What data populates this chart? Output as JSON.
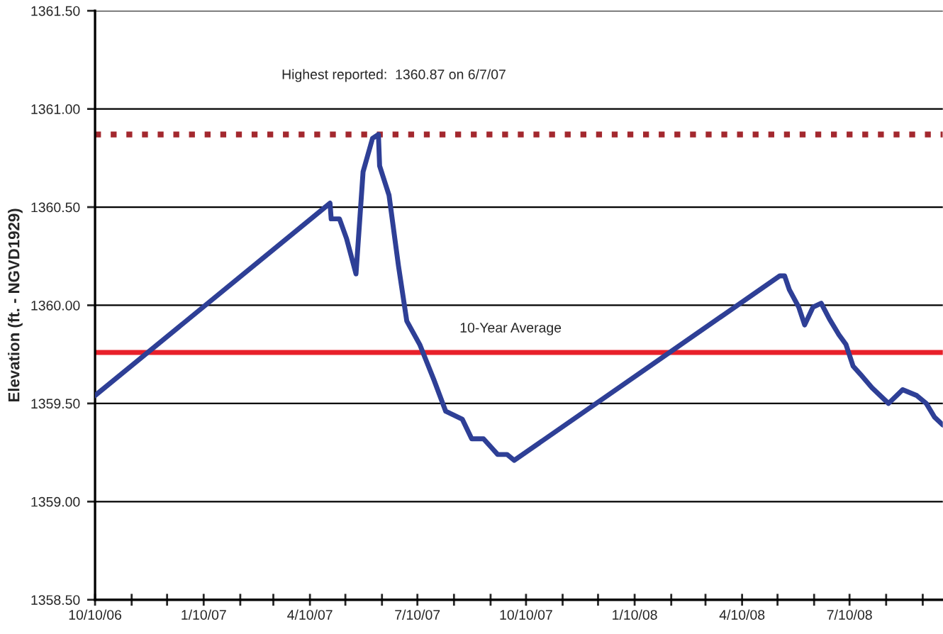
{
  "chart_data": {
    "type": "line",
    "ylabel": "Elevation (ft. - NGVD1929)",
    "x": [
      "2006-10-10",
      "2007-04-27",
      "2007-04-28",
      "2007-05-05",
      "2007-05-11",
      "2007-05-19",
      "2007-05-25",
      "2007-06-02",
      "2007-06-07",
      "2007-06-08",
      "2007-06-16",
      "2007-06-24",
      "2007-07-01",
      "2007-07-12",
      "2007-07-24",
      "2007-08-03",
      "2007-08-17",
      "2007-08-25",
      "2007-09-04",
      "2007-09-10",
      "2007-09-16",
      "2007-09-24",
      "2007-09-30",
      "2008-05-12",
      "2008-05-16",
      "2008-05-20",
      "2008-05-28",
      "2008-06-02",
      "2008-06-09",
      "2008-06-16",
      "2008-06-23",
      "2008-07-01",
      "2008-07-07",
      "2008-07-13",
      "2008-07-19",
      "2008-07-29",
      "2008-08-12",
      "2008-08-24",
      "2008-09-05",
      "2008-09-13",
      "2008-09-20",
      "2008-09-27"
    ],
    "series": [
      {
        "color": "#2e3f96",
        "values": [
          1359.54,
          1360.52,
          1360.44,
          1360.44,
          1360.34,
          1360.16,
          1360.68,
          1360.85,
          1360.87,
          1360.71,
          1360.56,
          1360.2,
          1359.92,
          1359.8,
          1359.62,
          1359.46,
          1359.42,
          1359.32,
          1359.32,
          1359.28,
          1359.24,
          1359.24,
          1359.21,
          1360.15,
          1360.15,
          1360.08,
          1359.99,
          1359.9,
          1359.99,
          1360.01,
          1359.93,
          1359.85,
          1359.8,
          1359.69,
          1359.65,
          1359.58,
          1359.5,
          1359.57,
          1359.54,
          1359.5,
          1359.43,
          1359.39
        ]
      }
    ],
    "xlim": [
      "2006-10-10",
      "2008-09-27"
    ],
    "xticks": [
      {
        "value": "2006-10-10",
        "label": "10/10/06"
      },
      {
        "value": "2006-11-10",
        "label": null
      },
      {
        "value": "2006-12-10",
        "label": null
      },
      {
        "value": "2007-01-10",
        "label": "1/10/07"
      },
      {
        "value": "2007-02-10",
        "label": null
      },
      {
        "value": "2007-03-10",
        "label": null
      },
      {
        "value": "2007-04-10",
        "label": "4/10/07"
      },
      {
        "value": "2007-05-10",
        "label": null
      },
      {
        "value": "2007-06-10",
        "label": null
      },
      {
        "value": "2007-07-10",
        "label": "7/10/07"
      },
      {
        "value": "2007-08-10",
        "label": null
      },
      {
        "value": "2007-09-10",
        "label": null
      },
      {
        "value": "2007-10-10",
        "label": "10/10/07"
      },
      {
        "value": "2007-11-10",
        "label": null
      },
      {
        "value": "2007-12-10",
        "label": null
      },
      {
        "value": "2008-01-10",
        "label": "1/10/08"
      },
      {
        "value": "2008-02-10",
        "label": null
      },
      {
        "value": "2008-03-10",
        "label": null
      },
      {
        "value": "2008-04-10",
        "label": "4/10/08"
      },
      {
        "value": "2008-05-10",
        "label": null
      },
      {
        "value": "2008-06-10",
        "label": null
      },
      {
        "value": "2008-07-10",
        "label": "7/10/08"
      },
      {
        "value": "2008-08-10",
        "label": null
      },
      {
        "value": "2008-09-10",
        "label": null
      }
    ],
    "ylim": [
      1358.5,
      1361.5
    ],
    "yticks": [
      {
        "value": 1358.5,
        "label": "1358.50"
      },
      {
        "value": 1359.0,
        "label": "1359.00"
      },
      {
        "value": 1359.5,
        "label": "1359.50"
      },
      {
        "value": 1360.0,
        "label": "1360.00"
      },
      {
        "value": 1360.5,
        "label": "1360.50"
      },
      {
        "value": 1361.0,
        "label": "1361.00"
      },
      {
        "value": 1361.5,
        "label": "1361.50"
      }
    ],
    "ref_lines": [
      {
        "axis": "y",
        "value": 1360.87,
        "color": "#a3282e",
        "line_style": "dotted"
      },
      {
        "axis": "y",
        "value": 1359.76,
        "label": "10-Year Average",
        "color": "#e8202a",
        "line_style": "solid"
      }
    ],
    "annotations": [
      "Highest reported:  1360.87 on 6/7/07"
    ],
    "grid": "y",
    "marker": "none",
    "line_style": "solid",
    "legend": false
  }
}
